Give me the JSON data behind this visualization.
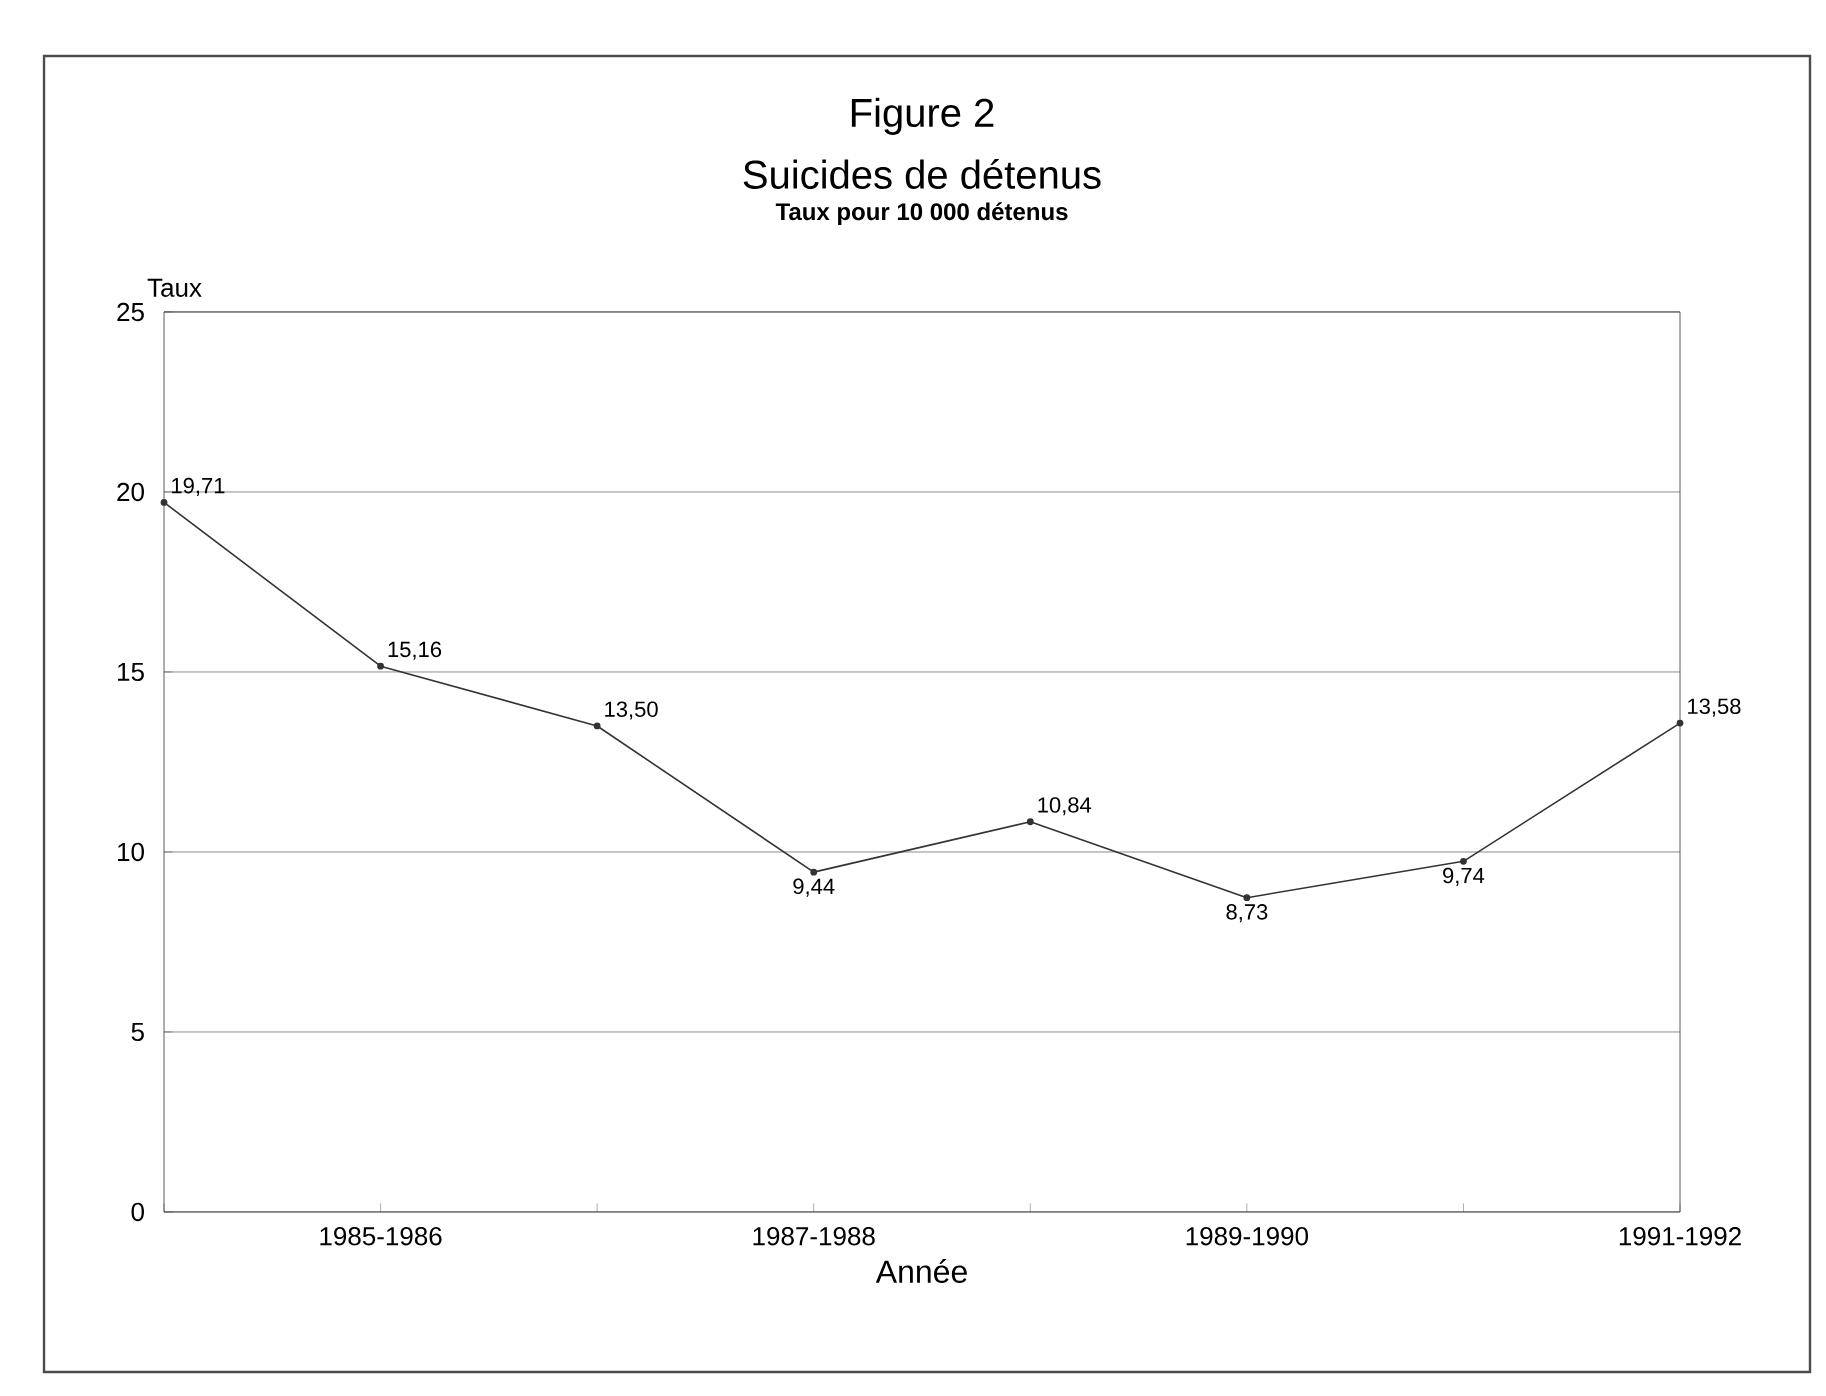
{
  "chart_data": {
    "type": "line",
    "title": "Figure 2",
    "subtitle": "Suicides de détenus",
    "annotations": [
      "Taux pour 10 000 détenus"
    ],
    "xlabel": "Année",
    "ylabel": "Taux",
    "categories": [
      null,
      "1985-1986",
      null,
      "1987-1988",
      null,
      "1989-1990",
      null,
      "1991-1992"
    ],
    "values": [
      19.71,
      15.16,
      13.5,
      9.44,
      10.84,
      8.73,
      9.74,
      13.58
    ],
    "value_labels": [
      "19,71",
      "15,16",
      "13,50",
      "9,44",
      "10,84",
      "8,73",
      "9,74",
      "13,58"
    ],
    "color": "#333333",
    "marker": "circle",
    "line_style": "solid",
    "grid": "y",
    "ylim": [
      0,
      25
    ],
    "yticks": [
      0,
      5,
      10,
      15,
      20,
      25
    ]
  }
}
